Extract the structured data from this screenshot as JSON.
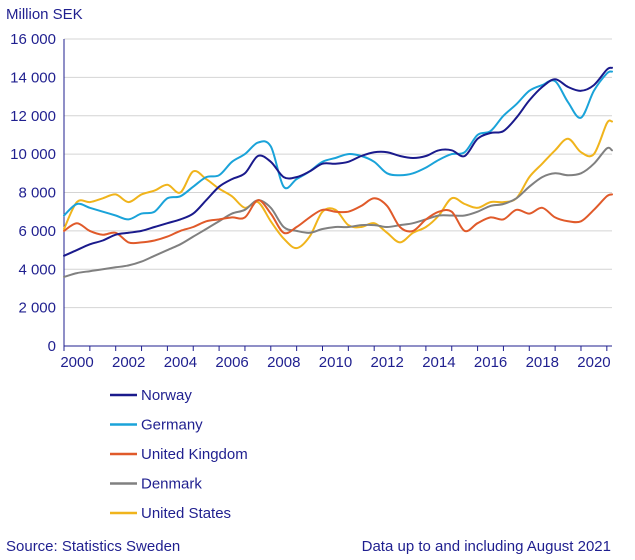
{
  "chart_data": {
    "type": "line",
    "ylabel": "Million SEK",
    "ylim": [
      0,
      16000
    ],
    "yticks": [
      0,
      2000,
      4000,
      6000,
      8000,
      10000,
      12000,
      14000,
      16000
    ],
    "ytick_labels": [
      "0",
      "2 000",
      "4 000",
      "6 000",
      "8 000",
      "10 000",
      "12 000",
      "14 000",
      "16 000"
    ],
    "xlim": [
      2000,
      2021.2
    ],
    "xticks": [
      2000,
      2002,
      2004,
      2006,
      2008,
      2010,
      2012,
      2014,
      2016,
      2018,
      2020
    ],
    "xtick_labels": [
      "2000",
      "2002",
      "2004",
      "2006",
      "2008",
      "2010",
      "2012",
      "2014",
      "2016",
      "2018",
      "2020"
    ],
    "grid": "horizontal",
    "series": [
      {
        "name": "Norway",
        "color": "#1a1a8c",
        "points": [
          [
            2000,
            4700
          ],
          [
            2000.5,
            5000
          ],
          [
            2001,
            5300
          ],
          [
            2001.5,
            5500
          ],
          [
            2002,
            5800
          ],
          [
            2002.5,
            5900
          ],
          [
            2003,
            6000
          ],
          [
            2003.5,
            6200
          ],
          [
            2004,
            6400
          ],
          [
            2004.5,
            6600
          ],
          [
            2005,
            6900
          ],
          [
            2005.5,
            7600
          ],
          [
            2006,
            8300
          ],
          [
            2006.5,
            8700
          ],
          [
            2007,
            9000
          ],
          [
            2007.5,
            9900
          ],
          [
            2008,
            9600
          ],
          [
            2008.5,
            8800
          ],
          [
            2009,
            8800
          ],
          [
            2009.5,
            9100
          ],
          [
            2010,
            9500
          ],
          [
            2010.5,
            9500
          ],
          [
            2011,
            9600
          ],
          [
            2011.5,
            9900
          ],
          [
            2012,
            10100
          ],
          [
            2012.5,
            10100
          ],
          [
            2013,
            9900
          ],
          [
            2013.5,
            9800
          ],
          [
            2014,
            9900
          ],
          [
            2014.5,
            10200
          ],
          [
            2015,
            10200
          ],
          [
            2015.5,
            9900
          ],
          [
            2016,
            10800
          ],
          [
            2016.5,
            11100
          ],
          [
            2017,
            11200
          ],
          [
            2017.5,
            11900
          ],
          [
            2018,
            12800
          ],
          [
            2018.5,
            13500
          ],
          [
            2019,
            13900
          ],
          [
            2019.5,
            13500
          ],
          [
            2020,
            13300
          ],
          [
            2020.5,
            13600
          ],
          [
            2021,
            14400
          ],
          [
            2021.2,
            14500
          ]
        ]
      },
      {
        "name": "Germany",
        "color": "#1aa3d9",
        "points": [
          [
            2000,
            6800
          ],
          [
            2000.5,
            7400
          ],
          [
            2001,
            7200
          ],
          [
            2001.5,
            7000
          ],
          [
            2002,
            6800
          ],
          [
            2002.5,
            6600
          ],
          [
            2003,
            6900
          ],
          [
            2003.5,
            7000
          ],
          [
            2004,
            7700
          ],
          [
            2004.5,
            7800
          ],
          [
            2005,
            8300
          ],
          [
            2005.5,
            8800
          ],
          [
            2006,
            8900
          ],
          [
            2006.5,
            9600
          ],
          [
            2007,
            10000
          ],
          [
            2007.5,
            10600
          ],
          [
            2008,
            10400
          ],
          [
            2008.5,
            8300
          ],
          [
            2009,
            8700
          ],
          [
            2009.5,
            9100
          ],
          [
            2010,
            9600
          ],
          [
            2010.5,
            9800
          ],
          [
            2011,
            10000
          ],
          [
            2011.5,
            9900
          ],
          [
            2012,
            9600
          ],
          [
            2012.5,
            9000
          ],
          [
            2013,
            8900
          ],
          [
            2013.5,
            9000
          ],
          [
            2014,
            9300
          ],
          [
            2014.5,
            9700
          ],
          [
            2015,
            10000
          ],
          [
            2015.5,
            10100
          ],
          [
            2016,
            11000
          ],
          [
            2016.5,
            11200
          ],
          [
            2017,
            12000
          ],
          [
            2017.5,
            12600
          ],
          [
            2018,
            13300
          ],
          [
            2018.5,
            13600
          ],
          [
            2019,
            13800
          ],
          [
            2019.5,
            12700
          ],
          [
            2020,
            11900
          ],
          [
            2020.5,
            13300
          ],
          [
            2021,
            14200
          ],
          [
            2021.2,
            14300
          ]
        ]
      },
      {
        "name": "United Kingdom",
        "color": "#e05a2a",
        "points": [
          [
            2000,
            6000
          ],
          [
            2000.5,
            6400
          ],
          [
            2001,
            6000
          ],
          [
            2001.5,
            5800
          ],
          [
            2002,
            5900
          ],
          [
            2002.5,
            5400
          ],
          [
            2003,
            5400
          ],
          [
            2003.5,
            5500
          ],
          [
            2004,
            5700
          ],
          [
            2004.5,
            6000
          ],
          [
            2005,
            6200
          ],
          [
            2005.5,
            6500
          ],
          [
            2006,
            6600
          ],
          [
            2006.5,
            6700
          ],
          [
            2007,
            6700
          ],
          [
            2007.5,
            7600
          ],
          [
            2008,
            6900
          ],
          [
            2008.5,
            5900
          ],
          [
            2009,
            6200
          ],
          [
            2009.5,
            6700
          ],
          [
            2010,
            7100
          ],
          [
            2010.5,
            7000
          ],
          [
            2011,
            7000
          ],
          [
            2011.5,
            7300
          ],
          [
            2012,
            7700
          ],
          [
            2012.5,
            7300
          ],
          [
            2013,
            6200
          ],
          [
            2013.5,
            6000
          ],
          [
            2014,
            6600
          ],
          [
            2014.5,
            7000
          ],
          [
            2015,
            7000
          ],
          [
            2015.5,
            6000
          ],
          [
            2016,
            6400
          ],
          [
            2016.5,
            6700
          ],
          [
            2017,
            6600
          ],
          [
            2017.5,
            7100
          ],
          [
            2018,
            6900
          ],
          [
            2018.5,
            7200
          ],
          [
            2019,
            6700
          ],
          [
            2019.5,
            6500
          ],
          [
            2020,
            6500
          ],
          [
            2020.5,
            7100
          ],
          [
            2021,
            7800
          ],
          [
            2021.2,
            7900
          ]
        ]
      },
      {
        "name": "Denmark",
        "color": "#808080",
        "points": [
          [
            2000,
            3600
          ],
          [
            2000.5,
            3800
          ],
          [
            2001,
            3900
          ],
          [
            2001.5,
            4000
          ],
          [
            2002,
            4100
          ],
          [
            2002.5,
            4200
          ],
          [
            2003,
            4400
          ],
          [
            2003.5,
            4700
          ],
          [
            2004,
            5000
          ],
          [
            2004.5,
            5300
          ],
          [
            2005,
            5700
          ],
          [
            2005.5,
            6100
          ],
          [
            2006,
            6500
          ],
          [
            2006.5,
            6900
          ],
          [
            2007,
            7100
          ],
          [
            2007.5,
            7600
          ],
          [
            2008,
            7200
          ],
          [
            2008.5,
            6200
          ],
          [
            2009,
            6000
          ],
          [
            2009.5,
            5900
          ],
          [
            2010,
            6100
          ],
          [
            2010.5,
            6200
          ],
          [
            2011,
            6200
          ],
          [
            2011.5,
            6300
          ],
          [
            2012,
            6300
          ],
          [
            2012.5,
            6200
          ],
          [
            2013,
            6300
          ],
          [
            2013.5,
            6400
          ],
          [
            2014,
            6600
          ],
          [
            2014.5,
            6800
          ],
          [
            2015,
            6800
          ],
          [
            2015.5,
            6800
          ],
          [
            2016,
            7000
          ],
          [
            2016.5,
            7300
          ],
          [
            2017,
            7400
          ],
          [
            2017.5,
            7700
          ],
          [
            2018,
            8300
          ],
          [
            2018.5,
            8800
          ],
          [
            2019,
            9000
          ],
          [
            2019.5,
            8900
          ],
          [
            2020,
            9000
          ],
          [
            2020.5,
            9500
          ],
          [
            2021,
            10300
          ],
          [
            2021.2,
            10200
          ]
        ]
      },
      {
        "name": "United States",
        "color": "#f0b41c",
        "points": [
          [
            2000,
            6100
          ],
          [
            2000.5,
            7500
          ],
          [
            2001,
            7500
          ],
          [
            2001.5,
            7700
          ],
          [
            2002,
            7900
          ],
          [
            2002.5,
            7500
          ],
          [
            2003,
            7900
          ],
          [
            2003.5,
            8100
          ],
          [
            2004,
            8400
          ],
          [
            2004.5,
            8000
          ],
          [
            2005,
            9100
          ],
          [
            2005.5,
            8700
          ],
          [
            2006,
            8200
          ],
          [
            2006.5,
            7800
          ],
          [
            2007,
            7200
          ],
          [
            2007.5,
            7500
          ],
          [
            2008,
            6500
          ],
          [
            2008.5,
            5600
          ],
          [
            2009,
            5100
          ],
          [
            2009.5,
            5700
          ],
          [
            2010,
            7000
          ],
          [
            2010.5,
            7100
          ],
          [
            2011,
            6300
          ],
          [
            2011.5,
            6200
          ],
          [
            2012,
            6400
          ],
          [
            2012.5,
            5900
          ],
          [
            2013,
            5400
          ],
          [
            2013.5,
            5900
          ],
          [
            2014,
            6200
          ],
          [
            2014.5,
            6800
          ],
          [
            2015,
            7700
          ],
          [
            2015.5,
            7400
          ],
          [
            2016,
            7200
          ],
          [
            2016.5,
            7500
          ],
          [
            2017,
            7500
          ],
          [
            2017.5,
            7700
          ],
          [
            2018,
            8800
          ],
          [
            2018.5,
            9500
          ],
          [
            2019,
            10200
          ],
          [
            2019.5,
            10800
          ],
          [
            2020,
            10100
          ],
          [
            2020.5,
            10000
          ],
          [
            2021,
            11600
          ],
          [
            2021.2,
            11700
          ]
        ]
      }
    ]
  },
  "source": "Source: Statistics Sweden",
  "note": "Data up to and including August 2021"
}
